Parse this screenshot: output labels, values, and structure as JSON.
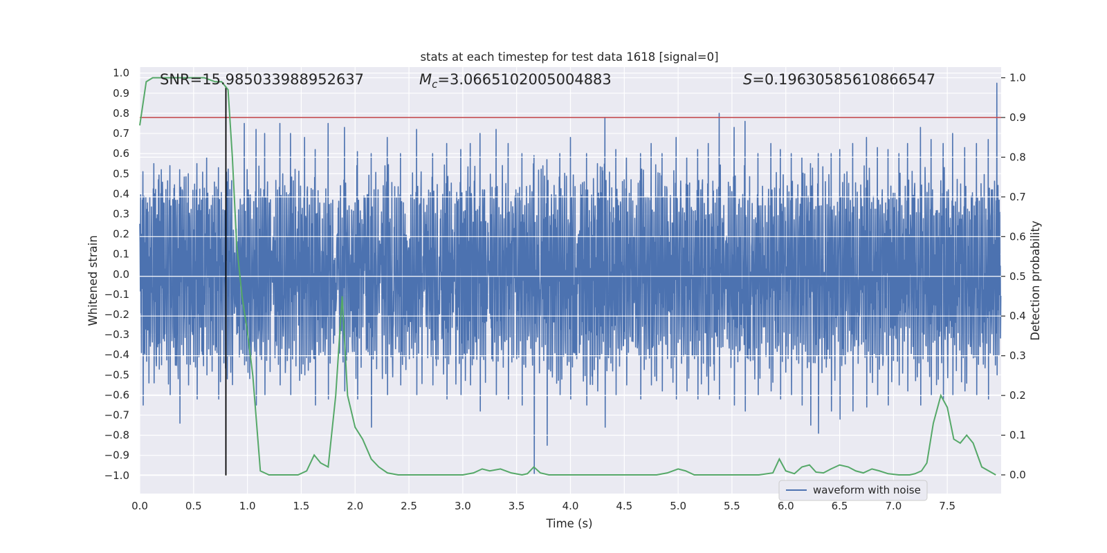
{
  "chart_data": {
    "type": "line",
    "title": "stats at each timestep for test data 1618 [signal=0]",
    "xlabel": "Time (s)",
    "ylabel_left": "Whitened strain",
    "ylabel_right": "Detection probability",
    "xlim": [
      0.0,
      8.0
    ],
    "ylim_left": [
      -1.09,
      1.03
    ],
    "ylim_right": [
      -0.047,
      1.027
    ],
    "x_ticks": [
      "0.0",
      "0.5",
      "1.0",
      "1.5",
      "2.0",
      "2.5",
      "3.0",
      "3.5",
      "4.0",
      "4.5",
      "5.0",
      "5.5",
      "6.0",
      "6.5",
      "7.0",
      "7.5"
    ],
    "y_ticks_left": [
      "1.0",
      "0.9",
      "0.8",
      "0.7",
      "0.6",
      "0.5",
      "0.4",
      "0.3",
      "0.2",
      "0.1",
      "0.0",
      "−0.1",
      "−0.2",
      "−0.3",
      "−0.4",
      "−0.5",
      "−0.6",
      "−0.7",
      "−0.8",
      "−0.9",
      "−1.0"
    ],
    "y_ticks_right": [
      "1.0",
      "0.9",
      "0.8",
      "0.7",
      "0.6",
      "0.5",
      "0.4",
      "0.3",
      "0.2",
      "0.1",
      "0.0"
    ],
    "annotations": {
      "snr_label": "SNR=15.985033988952637",
      "mc_label": "=3.0665102005004883",
      "mc_symbol": "M",
      "mc_subscript": "c",
      "s_label": "=0.19630585610866547",
      "s_symbol": "S"
    },
    "threshold_right": 0.9,
    "vertical_marker_x": 0.8,
    "legend": {
      "label": "waveform with noise",
      "placement": "lower-right"
    },
    "series": [
      {
        "name": "waveform with noise",
        "axis": "left",
        "description": "whitened noisy strain, ~|0.35| core envelope with spikes",
        "spikes": [
          [
            0.03,
            0.51,
            -0.65
          ],
          [
            0.13,
            0.55,
            -0.54
          ],
          [
            0.2,
            0.52,
            -0.45
          ],
          [
            0.28,
            0.54,
            -0.6
          ],
          [
            0.37,
            0.52,
            -0.74
          ],
          [
            0.45,
            0.5,
            -0.55
          ],
          [
            0.53,
            0.55,
            -0.62
          ],
          [
            0.62,
            0.58,
            -0.5
          ],
          [
            0.73,
            0.53,
            -0.62
          ],
          [
            0.81,
            0.46,
            -0.52
          ],
          [
            0.97,
            0.75,
            -0.45
          ],
          [
            1.08,
            0.72,
            -0.65
          ],
          [
            1.16,
            0.7,
            -0.6
          ],
          [
            1.3,
            0.75,
            -0.55
          ],
          [
            1.4,
            0.7,
            -0.6
          ],
          [
            1.53,
            0.68,
            -0.5
          ],
          [
            1.63,
            0.62,
            -0.65
          ],
          [
            1.75,
            0.75,
            -0.62
          ],
          [
            1.9,
            0.73,
            -0.58
          ],
          [
            2.02,
            0.61,
            -0.62
          ],
          [
            2.15,
            0.6,
            -0.76
          ],
          [
            2.3,
            0.68,
            -0.6
          ],
          [
            2.42,
            0.6,
            -0.55
          ],
          [
            2.57,
            0.72,
            -0.6
          ],
          [
            2.72,
            0.6,
            -0.55
          ],
          [
            2.85,
            0.65,
            -0.62
          ],
          [
            2.98,
            0.62,
            -0.6
          ],
          [
            3.07,
            0.65,
            -0.55
          ],
          [
            3.16,
            0.7,
            -0.68
          ],
          [
            3.31,
            0.72,
            -0.6
          ],
          [
            3.42,
            0.65,
            -0.62
          ],
          [
            3.55,
            0.6,
            -0.65
          ],
          [
            3.66,
            0.59,
            -0.99
          ],
          [
            3.78,
            0.57,
            -0.85
          ],
          [
            3.9,
            0.6,
            -0.6
          ],
          [
            4.0,
            0.68,
            -0.62
          ],
          [
            4.15,
            0.6,
            -0.65
          ],
          [
            4.25,
            0.55,
            -0.58
          ],
          [
            4.32,
            0.78,
            -0.76
          ],
          [
            4.42,
            0.62,
            -0.6
          ],
          [
            4.52,
            0.58,
            -0.55
          ],
          [
            4.65,
            0.6,
            -0.62
          ],
          [
            4.75,
            0.65,
            -0.55
          ],
          [
            4.85,
            0.6,
            -0.58
          ],
          [
            4.98,
            0.68,
            -0.62
          ],
          [
            5.08,
            0.58,
            -0.58
          ],
          [
            5.18,
            0.62,
            -0.62
          ],
          [
            5.28,
            0.65,
            -0.6
          ],
          [
            5.38,
            0.8,
            -0.62
          ],
          [
            5.52,
            0.73,
            -0.65
          ],
          [
            5.62,
            0.76,
            -0.68
          ],
          [
            5.74,
            0.6,
            -0.6
          ],
          [
            5.86,
            0.65,
            -0.58
          ],
          [
            5.95,
            0.62,
            -0.62
          ],
          [
            6.05,
            0.6,
            -0.6
          ],
          [
            6.15,
            0.58,
            -0.65
          ],
          [
            6.23,
            0.55,
            -0.75
          ],
          [
            6.3,
            0.6,
            -0.79
          ],
          [
            6.42,
            0.6,
            -0.68
          ],
          [
            6.5,
            0.62,
            -0.72
          ],
          [
            6.62,
            0.65,
            -0.68
          ],
          [
            6.75,
            0.68,
            -0.66
          ],
          [
            6.85,
            0.63,
            -0.6
          ],
          [
            6.95,
            0.62,
            -0.65
          ],
          [
            7.05,
            0.6,
            -0.55
          ],
          [
            7.13,
            0.65,
            -0.58
          ],
          [
            7.25,
            0.73,
            -0.65
          ],
          [
            7.35,
            0.67,
            -0.6
          ],
          [
            7.46,
            0.65,
            -0.62
          ],
          [
            7.55,
            0.7,
            -0.6
          ],
          [
            7.66,
            0.63,
            -0.58
          ],
          [
            7.77,
            0.65,
            -0.6
          ],
          [
            7.88,
            0.67,
            -0.62
          ],
          [
            7.96,
            0.95,
            -0.5
          ]
        ]
      },
      {
        "name": "detection probability",
        "axis": "right",
        "x": [
          0.0,
          0.06,
          0.12,
          0.2,
          0.3,
          0.4,
          0.5,
          0.6,
          0.7,
          0.76,
          0.82,
          0.86,
          0.9,
          0.95,
          1.0,
          1.05,
          1.12,
          1.2,
          1.3,
          1.4,
          1.47,
          1.55,
          1.62,
          1.68,
          1.75,
          1.82,
          1.88,
          1.93,
          2.0,
          2.07,
          2.15,
          2.22,
          2.3,
          2.4,
          2.55,
          2.7,
          2.85,
          3.0,
          3.1,
          3.18,
          3.25,
          3.35,
          3.45,
          3.55,
          3.6,
          3.66,
          3.72,
          3.8,
          3.9,
          4.0,
          4.2,
          4.4,
          4.6,
          4.8,
          4.9,
          5.0,
          5.07,
          5.15,
          5.3,
          5.45,
          5.6,
          5.75,
          5.88,
          5.94,
          6.0,
          6.08,
          6.15,
          6.22,
          6.28,
          6.35,
          6.42,
          6.5,
          6.58,
          6.65,
          6.72,
          6.8,
          6.87,
          6.95,
          7.05,
          7.15,
          7.2,
          7.26,
          7.31,
          7.37,
          7.44,
          7.5,
          7.56,
          7.62,
          7.68,
          7.74,
          7.82,
          7.95
        ],
        "y": [
          0.88,
          0.99,
          1.0,
          1.0,
          1.0,
          1.0,
          1.0,
          1.0,
          0.99,
          0.99,
          0.97,
          0.8,
          0.58,
          0.45,
          0.36,
          0.25,
          0.01,
          0.0,
          0.0,
          0.0,
          0.0,
          0.01,
          0.05,
          0.03,
          0.02,
          0.2,
          0.45,
          0.2,
          0.12,
          0.09,
          0.04,
          0.02,
          0.005,
          0.0,
          0.0,
          0.0,
          0.0,
          0.0,
          0.005,
          0.015,
          0.01,
          0.015,
          0.005,
          0.0,
          0.003,
          0.02,
          0.005,
          0.0,
          0.0,
          0.0,
          0.0,
          0.0,
          0.0,
          0.0,
          0.005,
          0.015,
          0.01,
          0.0,
          0.0,
          0.0,
          0.0,
          0.0,
          0.005,
          0.04,
          0.01,
          0.003,
          0.02,
          0.025,
          0.007,
          0.005,
          0.015,
          0.025,
          0.02,
          0.01,
          0.005,
          0.015,
          0.01,
          0.003,
          0.0,
          0.0,
          0.003,
          0.01,
          0.03,
          0.13,
          0.2,
          0.17,
          0.09,
          0.08,
          0.1,
          0.08,
          0.02,
          0.0
        ]
      }
    ]
  },
  "colors": {
    "axes_bg": "#eaeaf2",
    "grid": "#ffffff",
    "strain": "#4c72b0",
    "probability": "#55a868",
    "threshold": "#c44e52",
    "marker": "#000000",
    "text": "#262626"
  }
}
